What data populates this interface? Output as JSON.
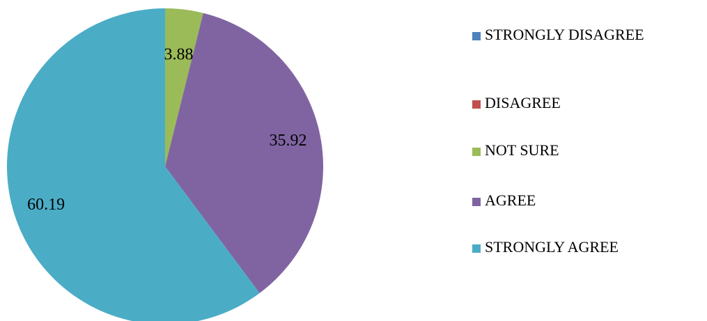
{
  "chart_data": {
    "type": "pie",
    "categories": [
      "STRONGLY DISAGREE",
      "DISAGREE",
      "NOT SURE",
      "AGREE",
      "STRONGLY AGREE"
    ],
    "values": [
      0,
      0,
      3.88,
      35.92,
      60.19
    ],
    "colors": [
      "#4f81bd",
      "#c0504d",
      "#9bbb59",
      "#8064a2",
      "#4bacc6"
    ],
    "legend": "right"
  }
}
